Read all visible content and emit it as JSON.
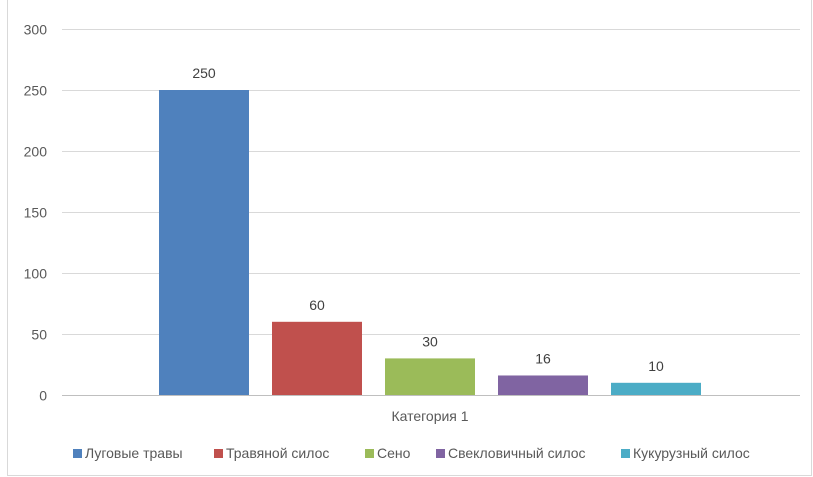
{
  "chart_data": {
    "type": "bar",
    "categories": [
      "Категория 1"
    ],
    "series": [
      {
        "name": "Луговые травы",
        "values": [
          250
        ],
        "color": "#4f81bd"
      },
      {
        "name": "Травяной силос",
        "values": [
          60
        ],
        "color": "#c0504d"
      },
      {
        "name": "Сено",
        "values": [
          30
        ],
        "color": "#9bbb59"
      },
      {
        "name": "Свекловичный силос",
        "values": [
          16
        ],
        "color": "#8064a2"
      },
      {
        "name": "Кукурузный силос",
        "values": [
          10
        ],
        "color": "#4bacc6"
      }
    ],
    "yticks": [
      0,
      50,
      100,
      150,
      200,
      250,
      300
    ],
    "ylim": [
      0,
      300
    ],
    "grid": true,
    "legend": "bottom"
  }
}
